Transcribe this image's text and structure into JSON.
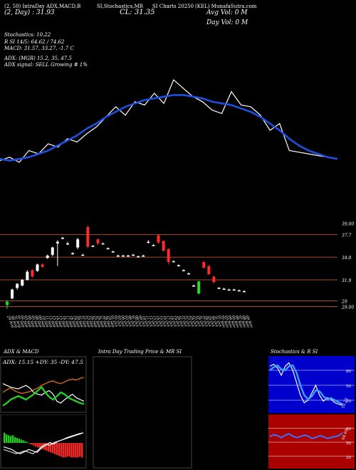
{
  "header": {
    "line1": [
      "(2, 50) IntraDay ADX,MACD,B",
      "SI,Stochastics,MR",
      "SI Charts 20250",
      "(KEL) MunafaSutra.com"
    ],
    "pe_line": "(2, Day) : 31.93",
    "cl_label": "CL: 31.35",
    "avg_vol": "Avg Vol: 0   M",
    "day_vol": "Day Vol: 0   M"
  },
  "info": {
    "stochastics": "Stochastics: 10.22",
    "stoch_rsi": "R                SI 14/5: 64.62 / 74.62",
    "macd": "MACD: 31.57,  33.27, -1.7  C",
    "adx": "ADX:                              (MGR) 15.2,  35,  47.5",
    "adx_signal": "ADX  signal: SELL Growing  # 1%"
  },
  "colors": {
    "price_line": "#ffffff",
    "ma_line": "#1f4fe0",
    "up_candle": "#ffffff",
    "down_candle": "#ff2a2a",
    "first_candle": "#22dd22",
    "level_line": "#a0522d",
    "adx_orange": "#d2691e",
    "green": "#22cc22",
    "blue_panel": "#0000cc",
    "red_panel": "#aa0000"
  },
  "chart_data": [
    {
      "type": "line",
      "title": "",
      "series": [
        {
          "name": "Price",
          "values": [
            31.3,
            31.5,
            31.2,
            31.9,
            31.7,
            32.3,
            32.1,
            32.6,
            32.4,
            32.9,
            33.3,
            33.9,
            34.5,
            34.0,
            34.8,
            34.6,
            35.3,
            34.7,
            36.1,
            35.6,
            35.1,
            34.8,
            34.3,
            34.1,
            35.4,
            34.6,
            34.5,
            34.0,
            33.1,
            33.5,
            31.9,
            31.8,
            31.7,
            31.6,
            31.5,
            31.4
          ]
        },
        {
          "name": "MA",
          "values": [
            31.4,
            31.3,
            31.4,
            31.5,
            31.7,
            31.9,
            32.2,
            32.5,
            32.8,
            33.2,
            33.5,
            33.9,
            34.2,
            34.5,
            34.7,
            34.9,
            35.0,
            35.1,
            35.2,
            35.2,
            35.1,
            35.0,
            34.8,
            34.7,
            34.6,
            34.4,
            34.2,
            33.9,
            33.5,
            33.1,
            32.6,
            32.2,
            31.9,
            31.7,
            31.5,
            31.4
          ]
        }
      ]
    },
    {
      "type": "candlestick",
      "categories": [
        "29 Aug",
        "30 Aug",
        "31 Aug",
        "01 Sep",
        "02 Sep",
        "03 Sep",
        "04 Sep",
        "05 Sep",
        "08 Sep",
        "09 Sep",
        "10 Sep",
        "11 Sep",
        "12 Sep",
        "13 Sep",
        "14 Sep",
        "15 Sep",
        "16 Sep",
        "17 Sep",
        "18 Sep",
        "19 Sep",
        "20 Sep",
        "21 Sep",
        "22 Sep",
        "23 Sep",
        "24 Sep",
        "25 Sep",
        "26 Sep",
        "27 Sep",
        "28 Sep",
        "29 Sep",
        "01 Oct",
        "02 Oct",
        "03 Oct",
        "04 Oct",
        "05 Oct",
        "06 Oct",
        "07 Oct",
        "08 Oct",
        "09 Oct",
        "10 Oct",
        "11 Oct",
        "12 Oct",
        "13 Oct",
        "14 Oct",
        "15 Oct",
        "16 Oct",
        "17 Oct",
        "18 Oct"
      ],
      "y_ticks_right": [
        "39.00",
        "37.7",
        "34.8",
        "31.9",
        "29",
        "29.00"
      ],
      "levels": [
        37.9,
        35.1,
        32.3,
        29.7,
        29.0
      ],
      "ylim": [
        28.6,
        39.6
      ],
      "candles": [
        {
          "o": 29.6,
          "c": 29.2,
          "h": 29.8,
          "l": 28.7,
          "col": "green"
        },
        {
          "o": 30.0,
          "c": 31.1,
          "h": 31.2,
          "l": 29.9,
          "col": "up"
        },
        {
          "o": 31.3,
          "c": 31.8,
          "h": 31.9,
          "l": 31.1,
          "col": "up"
        },
        {
          "o": 31.6,
          "c": 32.3,
          "h": 32.4,
          "l": 31.5,
          "col": "up"
        },
        {
          "o": 32.3,
          "c": 33.3,
          "h": 33.5,
          "l": 32.2,
          "col": "up"
        },
        {
          "o": 33.5,
          "c": 32.7,
          "h": 33.6,
          "l": 32.6,
          "col": "down"
        },
        {
          "o": 33.4,
          "c": 34.2,
          "h": 34.3,
          "l": 33.3,
          "col": "up"
        },
        {
          "o": 34.2,
          "c": 33.9,
          "h": 34.3,
          "l": 33.8,
          "col": "down"
        },
        {
          "o": 35.0,
          "c": 35.3,
          "h": 35.4,
          "l": 34.9,
          "col": "up"
        },
        {
          "o": 35.4,
          "c": 36.3,
          "h": 36.4,
          "l": 35.2,
          "col": "up"
        },
        {
          "o": 36.8,
          "c": 37.0,
          "h": 37.2,
          "l": 34.0,
          "col": "up"
        },
        {
          "o": 37.5,
          "c": 37.5,
          "h": 37.6,
          "l": 37.3,
          "col": "up"
        },
        {
          "o": 36.8,
          "c": 36.8,
          "h": 37.0,
          "l": 36.6,
          "col": "up"
        },
        {
          "o": 35.6,
          "c": 35.6,
          "h": 35.7,
          "l": 35.4,
          "col": "up"
        },
        {
          "o": 36.3,
          "c": 37.3,
          "h": 37.5,
          "l": 36.1,
          "col": "up"
        },
        {
          "o": 35.4,
          "c": 35.4,
          "h": 35.5,
          "l": 35.3,
          "col": "up"
        },
        {
          "o": 38.8,
          "c": 36.4,
          "h": 39.0,
          "l": 36.2,
          "col": "down"
        },
        {
          "o": 36.5,
          "c": 36.5,
          "h": 36.6,
          "l": 36.4,
          "col": "up"
        },
        {
          "o": 37.3,
          "c": 36.8,
          "h": 37.4,
          "l": 36.6,
          "col": "down"
        },
        {
          "o": 36.8,
          "c": 36.8,
          "h": 36.9,
          "l": 36.7,
          "col": "up"
        },
        {
          "o": 36.2,
          "c": 36.2,
          "h": 36.3,
          "l": 36.1,
          "col": "up"
        },
        {
          "o": 35.8,
          "c": 35.8,
          "h": 35.9,
          "l": 35.7,
          "col": "up"
        },
        {
          "o": 35.3,
          "c": 35.3,
          "h": 35.4,
          "l": 35.2,
          "col": "up"
        },
        {
          "o": 35.3,
          "c": 35.3,
          "h": 35.4,
          "l": 35.2,
          "col": "up"
        },
        {
          "o": 35.3,
          "c": 35.3,
          "h": 35.4,
          "l": 35.2,
          "col": "up"
        },
        {
          "o": 35.4,
          "c": 35.4,
          "h": 35.5,
          "l": 35.3,
          "col": "up"
        },
        {
          "o": 35.2,
          "c": 35.2,
          "h": 35.3,
          "l": 35.1,
          "col": "up"
        },
        {
          "o": 35.3,
          "c": 35.3,
          "h": 35.4,
          "l": 35.2,
          "col": "up"
        },
        {
          "o": 37.0,
          "c": 36.9,
          "h": 37.2,
          "l": 36.8,
          "col": "up"
        },
        {
          "o": 36.6,
          "c": 36.6,
          "h": 36.7,
          "l": 36.5,
          "col": "up"
        },
        {
          "o": 37.8,
          "c": 36.9,
          "h": 37.9,
          "l": 36.8,
          "col": "down"
        },
        {
          "o": 37.1,
          "c": 35.9,
          "h": 37.2,
          "l": 35.8,
          "col": "down"
        },
        {
          "o": 36.1,
          "c": 34.5,
          "h": 36.2,
          "l": 34.2,
          "col": "down"
        },
        {
          "o": 34.6,
          "c": 34.6,
          "h": 34.7,
          "l": 34.5,
          "col": "up"
        },
        {
          "o": 34.1,
          "c": 34.1,
          "h": 34.2,
          "l": 34.0,
          "col": "up"
        },
        {
          "o": 33.5,
          "c": 33.5,
          "h": 33.6,
          "l": 33.4,
          "col": "up"
        },
        {
          "o": 33.1,
          "c": 33.1,
          "h": 33.2,
          "l": 33.0,
          "col": "up"
        },
        {
          "o": 31.6,
          "c": 31.6,
          "h": 31.7,
          "l": 31.5,
          "col": "up"
        },
        {
          "o": 32.1,
          "c": 30.6,
          "h": 32.2,
          "l": 30.5,
          "col": "green"
        },
        {
          "o": 34.5,
          "c": 33.8,
          "h": 34.6,
          "l": 33.7,
          "col": "down"
        },
        {
          "o": 34.0,
          "c": 33.0,
          "h": 34.1,
          "l": 32.9,
          "col": "down"
        },
        {
          "o": 32.7,
          "c": 32.0,
          "h": 32.8,
          "l": 31.9,
          "col": "down"
        },
        {
          "o": 31.3,
          "c": 31.3,
          "h": 31.4,
          "l": 31.2,
          "col": "up"
        },
        {
          "o": 31.2,
          "c": 31.2,
          "h": 31.3,
          "l": 31.1,
          "col": "up"
        },
        {
          "o": 31.1,
          "c": 31.1,
          "h": 31.2,
          "l": 31.0,
          "col": "up"
        },
        {
          "o": 31.1,
          "c": 31.1,
          "h": 31.2,
          "l": 31.0,
          "col": "up"
        },
        {
          "o": 31.0,
          "c": 31.0,
          "h": 31.1,
          "l": 30.9,
          "col": "up"
        },
        {
          "o": 30.9,
          "c": 30.9,
          "h": 31.0,
          "l": 30.8,
          "col": "up"
        }
      ]
    },
    {
      "type": "line",
      "title": "ADX  & MACD",
      "subtitle": "ADX: 15.15  +DY: 35  -DY: 47.5",
      "series": [
        {
          "name": "",
          "values": [
            30,
            33,
            35,
            32,
            30,
            29,
            30,
            31,
            33,
            35,
            38,
            40,
            42,
            43,
            41,
            40,
            42,
            44,
            45,
            44,
            46,
            47
          ]
        },
        {
          "name": "",
          "values": [
            40,
            38,
            36,
            35,
            34,
            36,
            38,
            35,
            30,
            28,
            27,
            30,
            32,
            28,
            20,
            18,
            22,
            25,
            28,
            24,
            22,
            20
          ]
        },
        {
          "name": "",
          "values": [
            15,
            18,
            22,
            24,
            26,
            24,
            22,
            25,
            28,
            32,
            36,
            30,
            25,
            22,
            26,
            30,
            28,
            24,
            22,
            20,
            18,
            17
          ]
        }
      ]
    },
    {
      "type": "bar",
      "title": "",
      "values": [
        1.2,
        1.0,
        0.9,
        0.8,
        0.9,
        0.7,
        0.6,
        0.5,
        0.4,
        0.3,
        0.2,
        0.1,
        -0.1,
        -0.2,
        -0.3,
        -0.4,
        -0.5,
        -0.6,
        -0.7,
        -0.8,
        -0.9,
        -1.0,
        -1.1,
        -1.2,
        -1.3,
        -1.4,
        -1.5,
        -1.6,
        -1.7,
        -1.7,
        -1.6,
        -1.6,
        -1.7,
        -1.7,
        -1.7,
        -1.7,
        -1.6,
        -1.7
      ]
    },
    {
      "type": "line",
      "title": "Intra  Day Trading Price  & MR          SI",
      "series": []
    },
    {
      "type": "line",
      "title": "Stochastics & R          SI",
      "y_ticks": [
        "80",
        "50",
        "20"
      ],
      "last_label": "10.22",
      "series": [
        {
          "name": "",
          "values": [
            88,
            92,
            85,
            70,
            88,
            95,
            80,
            55,
            30,
            15,
            20,
            35,
            50,
            30,
            18,
            25,
            22,
            15,
            12,
            10
          ]
        },
        {
          "name": "",
          "values": [
            80,
            86,
            90,
            82,
            80,
            88,
            90,
            75,
            50,
            30,
            22,
            28,
            40,
            38,
            28,
            22,
            24,
            20,
            16,
            12
          ]
        }
      ]
    },
    {
      "type": "line",
      "title": "",
      "y_ticks": [
        "80",
        "50",
        "20"
      ],
      "last_label": "64.62",
      "series": [
        {
          "name": "",
          "values": [
            62,
            66,
            64,
            60,
            65,
            68,
            63,
            60,
            62,
            65,
            63,
            58,
            60,
            64,
            62,
            58,
            60,
            62,
            64,
            70
          ]
        }
      ]
    }
  ],
  "dates": [
    "29 Aug",
    "30 Aug",
    "31 Aug",
    "01 Sep",
    "02 Sep",
    "03 Sep",
    "04 Sep",
    "05 Sep",
    "08 Sep",
    "09 Sep",
    "10 Sep",
    "11 Sep",
    "12 Sep",
    "13 Sep",
    "14 Sep",
    "15 Sep",
    "16 Sep",
    "17 Sep",
    "18 Sep",
    "19 Sep",
    "20 Sep",
    "21 Sep",
    "22 Sep",
    "23 Sep",
    "24 Sep",
    "25 Sep",
    "26 Sep",
    "27 Sep",
    "28 Sep",
    "29 Sep",
    "01 Oct",
    "02 Oct",
    "03 Oct",
    "04 Oct",
    "05 Oct",
    "06 Oct",
    "07 Oct",
    "08 Oct",
    "09 Oct",
    "10 Oct",
    "11 Oct",
    "12 Oct",
    "13 Oct",
    "14 Oct",
    "15 Oct",
    "16 Oct",
    "17 Oct",
    "18 Oct",
    "19 Oct",
    "20 Oct",
    "21 Oct",
    "22 Oct",
    "23 Oct",
    "24 Oct",
    "25 Oct",
    "26 Oct",
    "27 Oct",
    "28 Oct",
    "29 Oct",
    "30 Oct",
    "31 Oct",
    "01 Nov",
    "02 Nov",
    "03 Nov",
    "04 Nov",
    "05 Nov",
    "06 Nov",
    "07 Nov",
    "08 Nov",
    "09 Nov"
  ]
}
